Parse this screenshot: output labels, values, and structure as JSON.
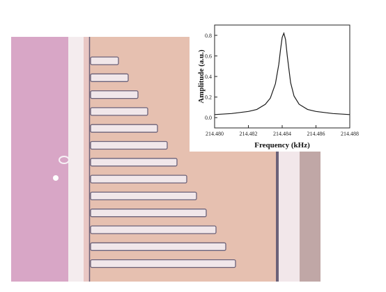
{
  "photo": {
    "description_colors": {
      "substrate": "#d9a7c4",
      "beam_surface": "#e7c1b1",
      "finger_fill": "#f1e7ea",
      "finger_edge": "#6b6178"
    },
    "finger_count": 13
  },
  "chart_data": {
    "type": "line",
    "xlabel": "Frequency (kHz)",
    "ylabel": "Amplitude (a.u.)",
    "xlim": [
      214.48,
      214.488
    ],
    "ylim": [
      -0.1,
      0.9
    ],
    "xticks": [
      "214.480",
      "214.482",
      "214.484",
      "214.486",
      "214.488"
    ],
    "yticks": [
      "0.0",
      "0.2",
      "0.4",
      "0.6",
      "0.8"
    ],
    "grid": false,
    "line_color": "#1a1a1a",
    "series": [
      {
        "x": [
          214.48,
          214.481,
          214.482,
          214.4825,
          214.483,
          214.4833,
          214.4836,
          214.4838,
          214.4839,
          214.484,
          214.4841,
          214.4842,
          214.4843,
          214.4845,
          214.4847,
          214.485,
          214.4855,
          214.486,
          214.487,
          214.488
        ],
        "y": [
          0.03,
          0.04,
          0.06,
          0.08,
          0.13,
          0.19,
          0.33,
          0.52,
          0.66,
          0.78,
          0.82,
          0.76,
          0.6,
          0.34,
          0.21,
          0.13,
          0.08,
          0.06,
          0.04,
          0.03
        ]
      }
    ]
  }
}
